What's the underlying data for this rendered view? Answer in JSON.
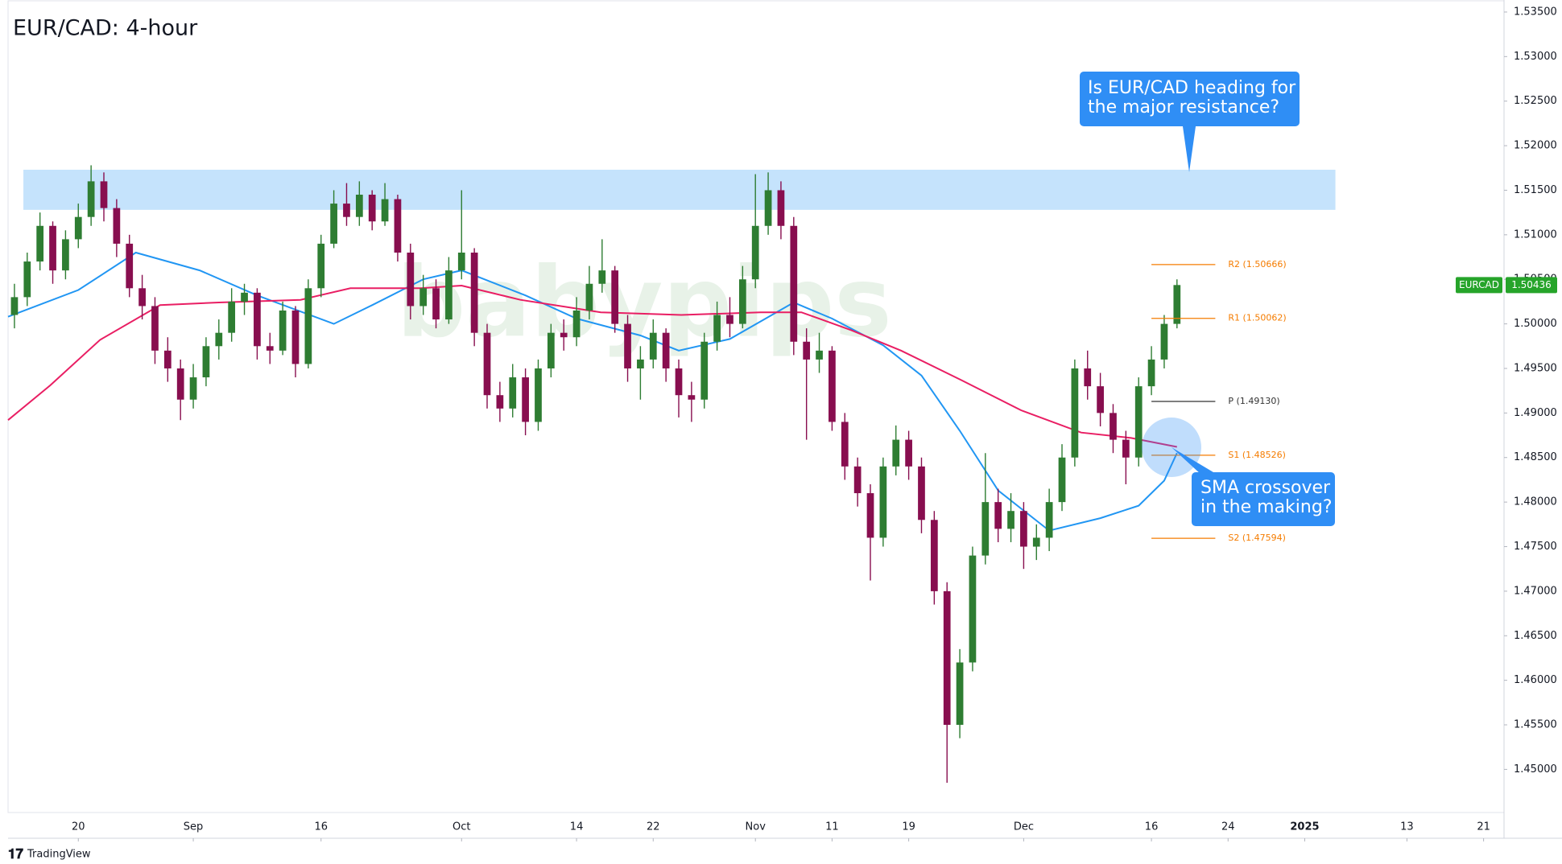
{
  "chart_data": {
    "type": "candlestick",
    "title": "EUR/CAD: 4-hour",
    "watermark": "babypips",
    "footer": "TradingView",
    "up_color": "#2e7d32",
    "down_color": "#880e4f",
    "grid": false,
    "xlim": [
      -5.5,
      111.6
    ],
    "ylim": [
      1.44516,
      1.53635
    ],
    "xticks": [
      {
        "value": 0,
        "label": "20"
      },
      {
        "value": 9,
        "label": "Sep"
      },
      {
        "value": 19,
        "label": "16"
      },
      {
        "value": 30,
        "label": "Oct"
      },
      {
        "value": 39,
        "label": "14"
      },
      {
        "value": 45,
        "label": "22"
      },
      {
        "value": 53,
        "label": "Nov"
      },
      {
        "value": 59,
        "label": "11"
      },
      {
        "value": 65,
        "label": "19"
      },
      {
        "value": 74,
        "label": "Dec"
      },
      {
        "value": 84,
        "label": "16"
      },
      {
        "value": 90,
        "label": "24"
      },
      {
        "value": 96,
        "label": "2025"
      },
      {
        "value": 104,
        "label": "13"
      },
      {
        "value": 110,
        "label": "21"
      }
    ],
    "yticks": [
      {
        "value": 1.45,
        "label": "1.45000"
      },
      {
        "value": 1.455,
        "label": "1.45500"
      },
      {
        "value": 1.46,
        "label": "1.46000"
      },
      {
        "value": 1.465,
        "label": "1.46500"
      },
      {
        "value": 1.47,
        "label": "1.47000"
      },
      {
        "value": 1.475,
        "label": "1.47500"
      },
      {
        "value": 1.48,
        "label": "1.48000"
      },
      {
        "value": 1.485,
        "label": "1.48500"
      },
      {
        "value": 1.49,
        "label": "1.49000"
      },
      {
        "value": 1.495,
        "label": "1.49500"
      },
      {
        "value": 1.5,
        "label": "1.50000"
      },
      {
        "value": 1.505,
        "label": "1.50500"
      },
      {
        "value": 1.51,
        "label": "1.51000"
      },
      {
        "value": 1.515,
        "label": "1.51500"
      },
      {
        "value": 1.52,
        "label": "1.52000"
      },
      {
        "value": 1.525,
        "label": "1.52500"
      },
      {
        "value": 1.53,
        "label": "1.53000"
      },
      {
        "value": 1.535,
        "label": "1.53500"
      }
    ],
    "x": [
      -5,
      -4,
      -3,
      -2,
      -1,
      0,
      1,
      2,
      3,
      4,
      5,
      6,
      7,
      8,
      9,
      10,
      11,
      12,
      13,
      14,
      15,
      16,
      17,
      18,
      19,
      20,
      21,
      22,
      23,
      24,
      25,
      26,
      27,
      28,
      29,
      30,
      31,
      32,
      33,
      34,
      35,
      36,
      37,
      38,
      39,
      40,
      41,
      42,
      43,
      44,
      45,
      46,
      47,
      48,
      49,
      50,
      51,
      52,
      53,
      54,
      55,
      56,
      57,
      58,
      59,
      60,
      61,
      62,
      63,
      64,
      65,
      66,
      67,
      68,
      69,
      70,
      71,
      72,
      73,
      74,
      75,
      76,
      77,
      78,
      79,
      80,
      81,
      82,
      83,
      84,
      85,
      86
    ],
    "open": [
      1.501,
      1.503,
      1.507,
      1.511,
      1.506,
      1.5095,
      1.512,
      1.516,
      1.513,
      1.509,
      1.504,
      1.502,
      1.497,
      1.495,
      1.4915,
      1.494,
      1.4975,
      1.499,
      1.5025,
      1.5035,
      1.4975,
      1.497,
      1.5015,
      1.4955,
      1.504,
      1.509,
      1.5135,
      1.512,
      1.5145,
      1.5115,
      1.514,
      1.508,
      1.502,
      1.504,
      1.5005,
      1.506,
      1.508,
      1.499,
      1.492,
      1.4905,
      1.494,
      1.489,
      1.495,
      1.499,
      1.4985,
      1.5015,
      1.5045,
      1.506,
      1.5,
      1.495,
      1.496,
      1.499,
      1.495,
      1.492,
      1.4915,
      1.498,
      1.501,
      1.5,
      1.505,
      1.511,
      1.515,
      1.511,
      1.498,
      1.496,
      1.497,
      1.489,
      1.484,
      1.481,
      1.476,
      1.484,
      1.487,
      1.484,
      1.478,
      1.47,
      1.455,
      1.462,
      1.474,
      1.48,
      1.477,
      1.479,
      1.475,
      1.476,
      1.48,
      1.485,
      1.495,
      1.493,
      1.49,
      1.487,
      1.485,
      1.493,
      1.496,
      1.5
    ],
    "high": [
      1.5045,
      1.508,
      1.5125,
      1.5115,
      1.5105,
      1.5135,
      1.5178,
      1.517,
      1.514,
      1.51,
      1.5055,
      1.503,
      1.4985,
      1.496,
      1.4955,
      1.4985,
      1.5005,
      1.504,
      1.5045,
      1.504,
      1.499,
      1.5025,
      1.502,
      1.505,
      1.51,
      1.515,
      1.5158,
      1.516,
      1.515,
      1.5158,
      1.5145,
      1.509,
      1.5055,
      1.505,
      1.5075,
      1.515,
      1.5085,
      1.5,
      1.4935,
      1.4955,
      1.495,
      1.496,
      1.5,
      1.5005,
      1.503,
      1.5065,
      1.5095,
      1.5065,
      1.501,
      1.4975,
      1.5005,
      1.4995,
      1.496,
      1.4935,
      1.499,
      1.5025,
      1.503,
      1.5065,
      1.5168,
      1.517,
      1.516,
      1.512,
      1.4995,
      1.499,
      1.4975,
      1.49,
      1.485,
      1.482,
      1.485,
      1.4886,
      1.488,
      1.485,
      1.479,
      1.471,
      1.4635,
      1.475,
      1.4855,
      1.4815,
      1.481,
      1.48,
      1.4775,
      1.4815,
      1.4865,
      1.496,
      1.497,
      1.4945,
      1.491,
      1.488,
      1.494,
      1.4975,
      1.501,
      1.505
    ],
    "low": [
      1.4995,
      1.502,
      1.506,
      1.5045,
      1.505,
      1.5085,
      1.511,
      1.5115,
      1.5075,
      1.503,
      1.5005,
      1.4955,
      1.4935,
      1.4892,
      1.4905,
      1.493,
      1.496,
      1.498,
      1.501,
      1.496,
      1.4955,
      1.4965,
      1.494,
      1.495,
      1.503,
      1.5085,
      1.511,
      1.511,
      1.5105,
      1.511,
      1.507,
      1.5005,
      1.501,
      1.4995,
      1.5,
      1.505,
      1.4975,
      1.4905,
      1.489,
      1.4895,
      1.4875,
      1.488,
      1.494,
      1.497,
      1.4975,
      1.5005,
      1.5035,
      1.499,
      1.4935,
      1.4915,
      1.495,
      1.4935,
      1.4895,
      1.489,
      1.4905,
      1.497,
      1.4985,
      1.4995,
      1.504,
      1.51,
      1.5095,
      1.4965,
      1.487,
      1.4945,
      1.488,
      1.4825,
      1.4795,
      1.4712,
      1.475,
      1.483,
      1.4825,
      1.4765,
      1.4685,
      1.4485,
      1.4535,
      1.461,
      1.473,
      1.4755,
      1.4755,
      1.4725,
      1.4735,
      1.4745,
      1.479,
      1.484,
      1.4915,
      1.4885,
      1.4855,
      1.482,
      1.484,
      1.492,
      1.495,
      1.4995
    ],
    "close": [
      1.503,
      1.507,
      1.511,
      1.506,
      1.5095,
      1.512,
      1.516,
      1.513,
      1.509,
      1.504,
      1.502,
      1.497,
      1.495,
      1.4915,
      1.494,
      1.4975,
      1.499,
      1.5025,
      1.5035,
      1.4975,
      1.497,
      1.5015,
      1.4955,
      1.504,
      1.509,
      1.5135,
      1.512,
      1.5145,
      1.5115,
      1.514,
      1.508,
      1.502,
      1.504,
      1.5005,
      1.506,
      1.508,
      1.499,
      1.492,
      1.4905,
      1.494,
      1.489,
      1.495,
      1.499,
      1.4985,
      1.5015,
      1.5045,
      1.506,
      1.5,
      1.495,
      1.496,
      1.499,
      1.495,
      1.492,
      1.4915,
      1.498,
      1.501,
      1.5,
      1.505,
      1.511,
      1.515,
      1.511,
      1.498,
      1.496,
      1.497,
      1.489,
      1.484,
      1.481,
      1.476,
      1.484,
      1.487,
      1.484,
      1.478,
      1.47,
      1.455,
      1.462,
      1.474,
      1.48,
      1.477,
      1.479,
      1.475,
      1.476,
      1.48,
      1.485,
      1.495,
      1.493,
      1.49,
      1.487,
      1.485,
      1.493,
      1.496,
      1.5,
      1.50436
    ],
    "sma": [
      {
        "color": "#2196f3",
        "x": [
          -5.5,
          0,
          4.5,
          9.5,
          14,
          20,
          23,
          27,
          30,
          35,
          39,
          44,
          47,
          51,
          56,
          59,
          63,
          66,
          69,
          72,
          76,
          80,
          83,
          85,
          86
        ],
        "values": [
          1.5008,
          1.5038,
          1.508,
          1.506,
          1.5032,
          1.5,
          1.5021,
          1.505,
          1.506,
          1.5032,
          1.5006,
          1.4987,
          1.497,
          1.4983,
          1.5024,
          1.5006,
          1.4976,
          1.4942,
          1.488,
          1.4813,
          1.4768,
          1.4782,
          1.4796,
          1.4824,
          1.4855
        ]
      },
      {
        "color": "#e91e63",
        "x": [
          -5.5,
          -2.2,
          1.7,
          6.4,
          11,
          17.4,
          21.3,
          26.8,
          30,
          34.6,
          40.9,
          47.2,
          53.4,
          56.6,
          60.5,
          64.4,
          69.1,
          73.8,
          78.5,
          82.4,
          86
        ],
        "values": [
          1.4892,
          1.4931,
          1.4982,
          1.5021,
          1.5024,
          1.5027,
          1.504,
          1.504,
          1.5043,
          1.5027,
          1.5013,
          1.501,
          1.5013,
          1.5013,
          1.4993,
          1.497,
          1.4937,
          1.4903,
          1.4878,
          1.4872,
          1.4862
        ]
      }
    ],
    "resistance_zone": {
      "x": [
        -4.3,
        98.4
      ],
      "y": [
        1.5128,
        1.5173
      ],
      "color": "#bbdefb"
    },
    "pivot_x": [
      84,
      89
    ],
    "pivots": [
      {
        "label": "R2 (1.50666)",
        "value": 1.50666,
        "color": "#f57c00"
      },
      {
        "label": "R1 (1.50062)",
        "value": 1.50062,
        "color": "#f57c00"
      },
      {
        "label": "P (1.49130)",
        "value": 1.4913,
        "color": "#333333"
      },
      {
        "label": "S1 (1.48526)",
        "value": 1.48526,
        "color": "#f57c00"
      },
      {
        "label": "S2 (1.47594)",
        "value": 1.47594,
        "color": "#f57c00"
      }
    ],
    "last_price": {
      "symbol": "EURCAD",
      "value": 1.50436,
      "color": "#26a42a"
    },
    "annotations": [
      {
        "lines": [
          "Is EUR/CAD heading for",
          "the major resistance?"
        ]
      },
      {
        "lines": [
          "SMA crossover",
          "in the making?"
        ]
      }
    ]
  }
}
